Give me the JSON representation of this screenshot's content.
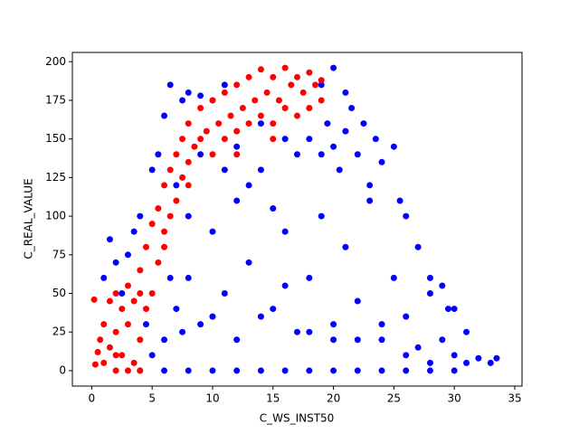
{
  "chart_data": {
    "type": "scatter",
    "x_label": "C_WS_INST50",
    "y_label": "C_REAL_VALUE",
    "xlim": [
      -1.6,
      35.6
    ],
    "ylim": [
      -10,
      206
    ],
    "xticks": [
      0,
      5,
      10,
      15,
      20,
      25,
      30,
      35
    ],
    "yticks": [
      0,
      25,
      50,
      75,
      100,
      125,
      150,
      175,
      200
    ],
    "series": [
      {
        "color": "#0000ff",
        "x": [
          4,
          6,
          8,
          10,
          12,
          14,
          16,
          18,
          20,
          22,
          24,
          26,
          28,
          30,
          1,
          1.5,
          2,
          2.5,
          3,
          3.5,
          4,
          5,
          5.5,
          6,
          6.5,
          7,
          7.5,
          8,
          9,
          10,
          11,
          6,
          7,
          8,
          9,
          10,
          11,
          12,
          13,
          14,
          15,
          16,
          17,
          18,
          19,
          20,
          21,
          22,
          23,
          24,
          25,
          26,
          27,
          28,
          29,
          30,
          31,
          32,
          33,
          33.5,
          18,
          19,
          19.5,
          20,
          20.5,
          21,
          21.5,
          22,
          22.5,
          23,
          23.5,
          24,
          25,
          25.5,
          26,
          27,
          28,
          29,
          30,
          20,
          19,
          21,
          12,
          14,
          16,
          17,
          13,
          15,
          11,
          9,
          8,
          5,
          4.5,
          6.5,
          7.5,
          10,
          12,
          14,
          16,
          18,
          20,
          22,
          24,
          26,
          28,
          29.5,
          31
        ],
        "values": [
          0,
          0,
          0,
          0,
          0,
          0,
          0,
          0,
          0,
          0,
          0,
          0,
          0,
          0,
          60,
          85,
          70,
          50,
          75,
          90,
          100,
          130,
          140,
          165,
          185,
          120,
          175,
          180,
          178,
          175,
          185,
          20,
          40,
          60,
          30,
          90,
          50,
          110,
          70,
          130,
          40,
          90,
          25,
          60,
          100,
          20,
          80,
          45,
          110,
          20,
          60,
          35,
          15,
          50,
          20,
          10,
          25,
          8,
          5,
          8,
          150,
          140,
          160,
          145,
          130,
          155,
          170,
          140,
          160,
          120,
          150,
          135,
          145,
          110,
          100,
          80,
          60,
          55,
          40,
          196,
          185,
          180,
          145,
          160,
          150,
          140,
          120,
          105,
          130,
          140,
          100,
          10,
          30,
          60,
          25,
          35,
          20,
          35,
          55,
          25,
          30,
          20,
          30,
          10,
          5,
          40,
          5
        ]
      },
      {
        "color": "#ff0000",
        "x": [
          0.2,
          0.3,
          0.5,
          0.7,
          1,
          1,
          1.5,
          1.5,
          2,
          2,
          2,
          2.5,
          2.5,
          3,
          3,
          3,
          3.5,
          3.5,
          4,
          4,
          4,
          4.5,
          4.5,
          5,
          5,
          5.5,
          5.5,
          6,
          6,
          6.5,
          6.5,
          7,
          7,
          7.5,
          7.5,
          8,
          8,
          8.5,
          9,
          9,
          9.5,
          10,
          10,
          10.5,
          11,
          11,
          11.5,
          12,
          12,
          12.5,
          13,
          13,
          13.5,
          14,
          14,
          14.5,
          15,
          15,
          15.5,
          16,
          16,
          16.5,
          17,
          17,
          17.5,
          18,
          18,
          18.5,
          19,
          19,
          12,
          15,
          8,
          6,
          4,
          2
        ],
        "values": [
          46,
          4,
          12,
          20,
          5,
          30,
          15,
          45,
          0,
          25,
          50,
          10,
          40,
          0,
          30,
          55,
          5,
          45,
          0,
          20,
          65,
          40,
          80,
          50,
          95,
          70,
          105,
          90,
          120,
          100,
          130,
          110,
          140,
          125,
          150,
          135,
          160,
          145,
          150,
          170,
          155,
          140,
          175,
          160,
          150,
          180,
          165,
          155,
          185,
          170,
          160,
          190,
          175,
          165,
          195,
          180,
          160,
          190,
          175,
          170,
          196,
          185,
          165,
          190,
          180,
          170,
          193,
          185,
          175,
          188,
          140,
          150,
          120,
          80,
          50,
          10
        ]
      }
    ]
  }
}
